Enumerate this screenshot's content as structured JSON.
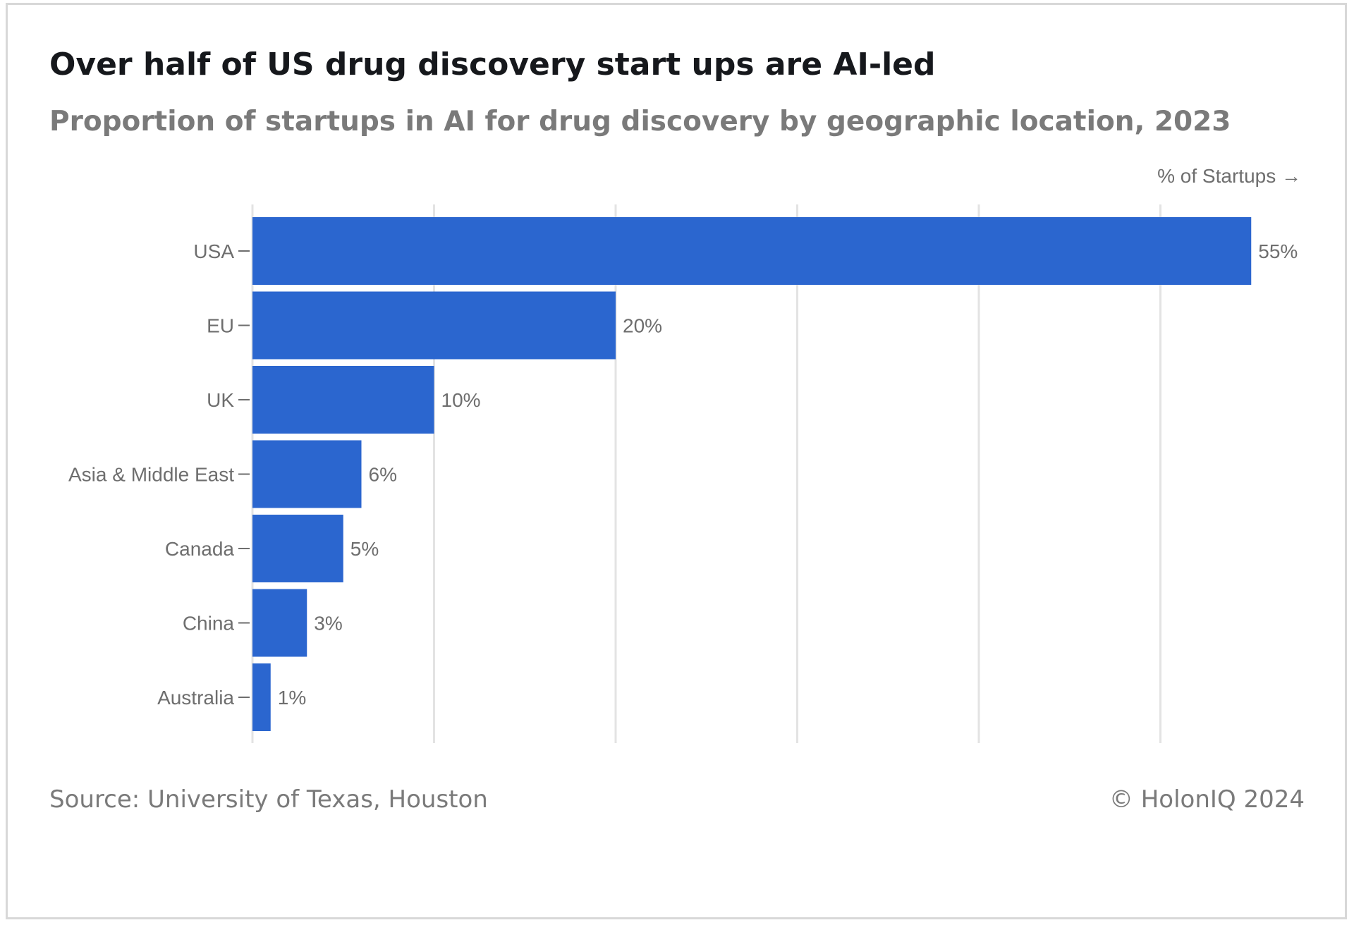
{
  "chart_data": {
    "type": "bar",
    "orientation": "horizontal",
    "title": "Over half of US drug discovery start ups are AI-led",
    "subtitle": "Proportion of startups in AI for drug discovery by geographic location, 2023",
    "xlabel": "% of Startups →",
    "ylabel": "",
    "categories": [
      "USA",
      "EU",
      "UK",
      "Asia & Middle East",
      "Canada",
      "China",
      "Australia"
    ],
    "values": [
      55,
      20,
      10,
      6,
      5,
      3,
      1
    ],
    "data_labels": [
      "55%",
      "20%",
      "10%",
      "6%",
      "5%",
      "3%",
      "1%"
    ],
    "xlim": [
      0,
      55
    ],
    "grid": true,
    "gridline_values": [
      0,
      10,
      20,
      30,
      40,
      50
    ],
    "legend": "none",
    "source": "Source: University of Texas, Houston",
    "copyright": "© HolonIQ 2024"
  },
  "colors": {
    "bar": "#2b66cf",
    "grid": "#e3e3e3",
    "label": "#6e6e6e",
    "title": "#16181c",
    "subtitle": "#7a7a7a"
  }
}
